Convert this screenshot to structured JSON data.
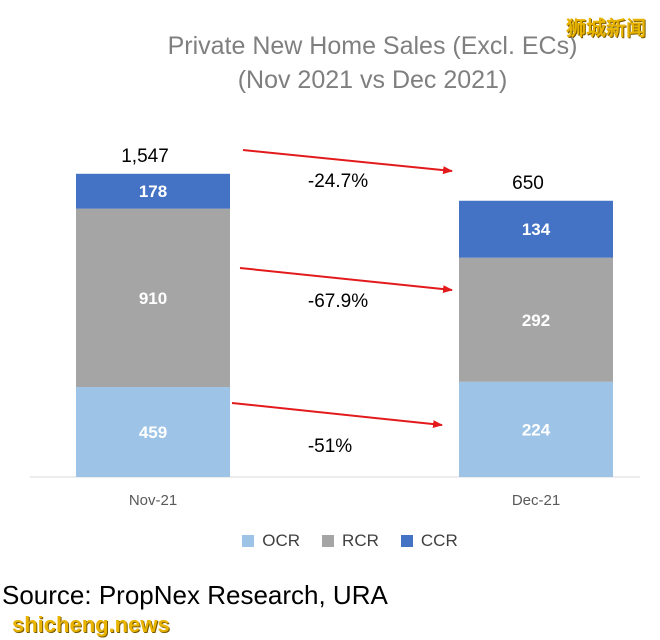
{
  "chart_data": {
    "type": "bar",
    "stacked": true,
    "title": "Private New Home Sales (Excl. ECs)",
    "subtitle": "(Nov 2021 vs Dec 2021)",
    "categories": [
      "Nov-21",
      "Dec-21"
    ],
    "totals": [
      "1,547",
      "650"
    ],
    "series": [
      {
        "name": "OCR",
        "values": [
          459,
          224
        ],
        "color": "#9dc3e6"
      },
      {
        "name": "RCR",
        "values": [
          910,
          292
        ],
        "color": "#a5a5a5"
      },
      {
        "name": "CCR",
        "values": [
          178,
          134
        ],
        "color": "#4472c4"
      }
    ],
    "changes": [
      "-24.7%",
      "-67.9%",
      "-51%"
    ],
    "change_arrow_color": "#e31a1c",
    "grid": false,
    "legend_position": "bottom"
  },
  "source": "Source: PropNex Research, URA",
  "watermark_top": "狮城新闻",
  "watermark_bottom": "shicheng.news"
}
